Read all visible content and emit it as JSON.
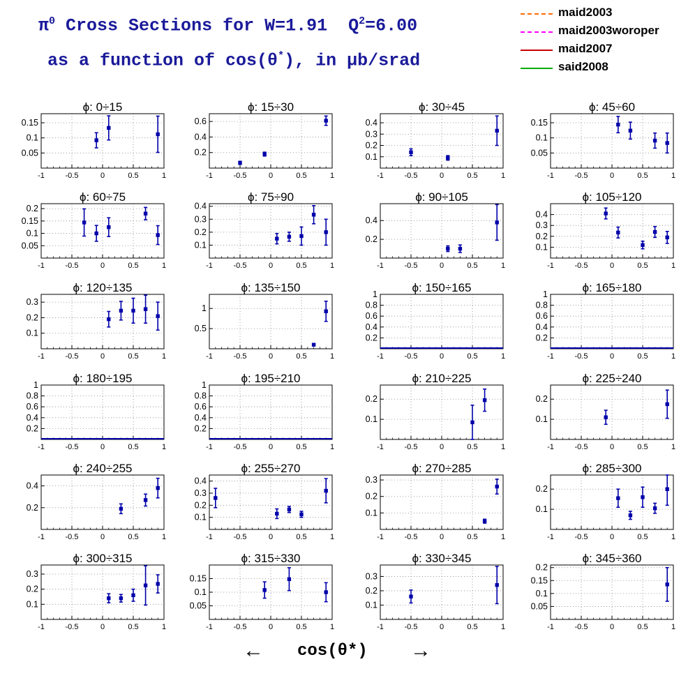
{
  "title": {
    "line1_prefix": "π",
    "line1_sup": "0",
    "line1_mid": " Cross Sections for W=1.91  Q",
    "line1_sup2": "2",
    "line1_end": "=6.00",
    "line2_prefix": "as a function of cos(θ",
    "line2_sup": "*",
    "line2_end": "), in μb/srad"
  },
  "legend": [
    {
      "label": "maid2003",
      "color": "#ff6a00",
      "style": "dashdot"
    },
    {
      "label": "maid2003woroper",
      "color": "#ff00ff",
      "style": "dashed"
    },
    {
      "label": "maid2007",
      "color": "#cc0000",
      "style": "solid"
    },
    {
      "label": "said2008",
      "color": "#00aa00",
      "style": "solid"
    }
  ],
  "axis_caption": {
    "left_arrow": "←",
    "label": "cos(θ*)",
    "right_arrow": "→"
  },
  "colors": {
    "points": "#0000aa",
    "grid": "#888888"
  },
  "chart_data": {
    "type": "scatter",
    "x_label": "cos(θ*)",
    "xlim": [
      -1,
      1
    ],
    "x_ticks": [
      "-1",
      "-0.5",
      "0",
      "0.5",
      "1"
    ],
    "grid": true,
    "panels": [
      {
        "label": "ϕ:  0÷15",
        "ylim": [
          0,
          0.18
        ],
        "yticks": [
          "0.05",
          "0.1",
          "0.15"
        ],
        "points": [
          {
            "x": -0.1,
            "y": 0.092,
            "err": 0.025
          },
          {
            "x": 0.1,
            "y": 0.133,
            "err": 0.04
          },
          {
            "x": 0.9,
            "y": 0.112,
            "err": 0.06
          }
        ]
      },
      {
        "label": "ϕ:  15÷30",
        "ylim": [
          0,
          0.7
        ],
        "yticks": [
          "0.2",
          "0.4",
          "0.6"
        ],
        "points": [
          {
            "x": -0.5,
            "y": 0.068,
            "err": 0.02
          },
          {
            "x": -0.1,
            "y": 0.18,
            "err": 0.025
          },
          {
            "x": 0.9,
            "y": 0.61,
            "err": 0.06
          }
        ]
      },
      {
        "label": "ϕ:  30÷45",
        "ylim": [
          0,
          0.48
        ],
        "yticks": [
          "0.1",
          "0.2",
          "0.3",
          "0.4"
        ],
        "points": [
          {
            "x": -0.5,
            "y": 0.14,
            "err": 0.03
          },
          {
            "x": 0.1,
            "y": 0.09,
            "err": 0.02
          },
          {
            "x": 0.9,
            "y": 0.33,
            "err": 0.13
          }
        ]
      },
      {
        "label": "ϕ:  45÷60",
        "ylim": [
          0,
          0.18
        ],
        "yticks": [
          "0.05",
          "0.1",
          "0.15"
        ],
        "points": [
          {
            "x": 0.1,
            "y": 0.144,
            "err": 0.027
          },
          {
            "x": 0.3,
            "y": 0.124,
            "err": 0.028
          },
          {
            "x": 0.7,
            "y": 0.091,
            "err": 0.025
          },
          {
            "x": 0.9,
            "y": 0.083,
            "err": 0.033
          }
        ]
      },
      {
        "label": "ϕ:  60÷75",
        "ylim": [
          0,
          0.22
        ],
        "yticks": [
          "0.05",
          "0.1",
          "0.15",
          "0.2"
        ],
        "points": [
          {
            "x": -0.3,
            "y": 0.144,
            "err": 0.055
          },
          {
            "x": -0.1,
            "y": 0.1,
            "err": 0.032
          },
          {
            "x": 0.1,
            "y": 0.125,
            "err": 0.038
          },
          {
            "x": 0.7,
            "y": 0.18,
            "err": 0.025
          },
          {
            "x": 0.9,
            "y": 0.093,
            "err": 0.038
          }
        ]
      },
      {
        "label": "ϕ:  75÷90",
        "ylim": [
          0,
          0.42
        ],
        "yticks": [
          "0.1",
          "0.2",
          "0.3",
          "0.4"
        ],
        "points": [
          {
            "x": 0.1,
            "y": 0.15,
            "err": 0.04
          },
          {
            "x": 0.3,
            "y": 0.165,
            "err": 0.035
          },
          {
            "x": 0.5,
            "y": 0.17,
            "err": 0.07
          },
          {
            "x": 0.7,
            "y": 0.335,
            "err": 0.07
          },
          {
            "x": 0.9,
            "y": 0.2,
            "err": 0.1
          }
        ]
      },
      {
        "label": "ϕ:  90÷105",
        "ylim": [
          0,
          0.58
        ],
        "yticks": [
          "0.2",
          "0.4"
        ],
        "points": [
          {
            "x": 0.1,
            "y": 0.1,
            "err": 0.03
          },
          {
            "x": 0.3,
            "y": 0.1,
            "err": 0.04
          },
          {
            "x": 0.9,
            "y": 0.38,
            "err": 0.19
          }
        ]
      },
      {
        "label": "ϕ:  105÷120",
        "ylim": [
          0,
          0.5
        ],
        "yticks": [
          "0.1",
          "0.2",
          "0.3",
          "0.4"
        ],
        "points": [
          {
            "x": -0.1,
            "y": 0.41,
            "err": 0.05
          },
          {
            "x": 0.1,
            "y": 0.235,
            "err": 0.05
          },
          {
            "x": 0.5,
            "y": 0.12,
            "err": 0.035
          },
          {
            "x": 0.7,
            "y": 0.24,
            "err": 0.05
          },
          {
            "x": 0.9,
            "y": 0.19,
            "err": 0.055
          }
        ]
      },
      {
        "label": "ϕ:  120÷135",
        "ylim": [
          0,
          0.35
        ],
        "yticks": [
          "0.1",
          "0.2",
          "0.3"
        ],
        "points": [
          {
            "x": 0.1,
            "y": 0.19,
            "err": 0.05
          },
          {
            "x": 0.3,
            "y": 0.245,
            "err": 0.06
          },
          {
            "x": 0.5,
            "y": 0.245,
            "err": 0.08
          },
          {
            "x": 0.7,
            "y": 0.255,
            "err": 0.09
          },
          {
            "x": 0.9,
            "y": 0.21,
            "err": 0.09
          }
        ]
      },
      {
        "label": "ϕ:  135÷150",
        "ylim": [
          0,
          1.35
        ],
        "yticks": [
          "0.5",
          "1"
        ],
        "points": [
          {
            "x": 0.7,
            "y": 0.1,
            "err": 0.03
          },
          {
            "x": 0.9,
            "y": 0.93,
            "err": 0.25
          }
        ]
      },
      {
        "label": "ϕ:  150÷165",
        "ylim": [
          0,
          1
        ],
        "yticks": [
          "0.2",
          "0.4",
          "0.6",
          "0.8",
          "1"
        ],
        "points": []
      },
      {
        "label": "ϕ:  165÷180",
        "ylim": [
          0,
          1
        ],
        "yticks": [
          "0.2",
          "0.4",
          "0.6",
          "0.8",
          "1"
        ],
        "points": []
      },
      {
        "label": "ϕ:  180÷195",
        "ylim": [
          0,
          1
        ],
        "yticks": [
          "0.2",
          "0.4",
          "0.6",
          "0.8",
          "1"
        ],
        "points": []
      },
      {
        "label": "ϕ:  195÷210",
        "ylim": [
          0,
          1
        ],
        "yticks": [
          "0.2",
          "0.4",
          "0.6",
          "0.8",
          "1"
        ],
        "points": []
      },
      {
        "label": "ϕ:  210÷225",
        "ylim": [
          0,
          0.27
        ],
        "yticks": [
          "0.1",
          "0.2"
        ],
        "points": [
          {
            "x": 0.5,
            "y": 0.085,
            "err": 0.085
          },
          {
            "x": 0.7,
            "y": 0.195,
            "err": 0.055
          }
        ]
      },
      {
        "label": "ϕ:  225÷240",
        "ylim": [
          0,
          0.27
        ],
        "yticks": [
          "0.1",
          "0.2"
        ],
        "points": [
          {
            "x": -0.1,
            "y": 0.11,
            "err": 0.035
          },
          {
            "x": 0.9,
            "y": 0.175,
            "err": 0.07
          }
        ]
      },
      {
        "label": "ϕ:  240÷255",
        "ylim": [
          0,
          0.5
        ],
        "yticks": [
          "0.2",
          "0.4"
        ],
        "points": [
          {
            "x": 0.3,
            "y": 0.19,
            "err": 0.045
          },
          {
            "x": 0.7,
            "y": 0.27,
            "err": 0.055
          },
          {
            "x": 0.9,
            "y": 0.38,
            "err": 0.09
          }
        ]
      },
      {
        "label": "ϕ:  255÷270",
        "ylim": [
          0,
          0.45
        ],
        "yticks": [
          "0.1",
          "0.2",
          "0.3",
          "0.4"
        ],
        "points": [
          {
            "x": -0.9,
            "y": 0.26,
            "err": 0.08
          },
          {
            "x": 0.1,
            "y": 0.13,
            "err": 0.04
          },
          {
            "x": 0.3,
            "y": 0.165,
            "err": 0.025
          },
          {
            "x": 0.5,
            "y": 0.125,
            "err": 0.025
          },
          {
            "x": 0.9,
            "y": 0.32,
            "err": 0.1
          }
        ]
      },
      {
        "label": "ϕ:  270÷285",
        "ylim": [
          0,
          0.33
        ],
        "yticks": [
          "0.1",
          "0.2",
          "0.3"
        ],
        "points": [
          {
            "x": 0.7,
            "y": 0.05,
            "err": 0.012
          },
          {
            "x": 0.9,
            "y": 0.26,
            "err": 0.045
          }
        ]
      },
      {
        "label": "ϕ:  285÷300",
        "ylim": [
          0,
          0.27
        ],
        "yticks": [
          "0.1",
          "0.2"
        ],
        "points": [
          {
            "x": 0.1,
            "y": 0.155,
            "err": 0.045
          },
          {
            "x": 0.3,
            "y": 0.07,
            "err": 0.02
          },
          {
            "x": 0.5,
            "y": 0.16,
            "err": 0.05
          },
          {
            "x": 0.7,
            "y": 0.105,
            "err": 0.025
          },
          {
            "x": 0.9,
            "y": 0.2,
            "err": 0.08
          }
        ]
      },
      {
        "label": "ϕ:  300÷315",
        "ylim": [
          0,
          0.36
        ],
        "yticks": [
          "0.1",
          "0.2",
          "0.3"
        ],
        "points": [
          {
            "x": 0.1,
            "y": 0.14,
            "err": 0.03
          },
          {
            "x": 0.3,
            "y": 0.14,
            "err": 0.025
          },
          {
            "x": 0.5,
            "y": 0.16,
            "err": 0.04
          },
          {
            "x": 0.7,
            "y": 0.225,
            "err": 0.13
          },
          {
            "x": 0.9,
            "y": 0.235,
            "err": 0.06
          }
        ]
      },
      {
        "label": "ϕ:  315÷330",
        "ylim": [
          0,
          0.2
        ],
        "yticks": [
          "0.05",
          "0.1",
          "0.15"
        ],
        "points": [
          {
            "x": -0.1,
            "y": 0.108,
            "err": 0.03
          },
          {
            "x": 0.3,
            "y": 0.148,
            "err": 0.042
          },
          {
            "x": 0.9,
            "y": 0.1,
            "err": 0.035
          }
        ]
      },
      {
        "label": "ϕ:  330÷345",
        "ylim": [
          0,
          0.38
        ],
        "yticks": [
          "0.1",
          "0.2",
          "0.3"
        ],
        "points": [
          {
            "x": -0.5,
            "y": 0.16,
            "err": 0.045
          },
          {
            "x": 0.9,
            "y": 0.24,
            "err": 0.13
          }
        ]
      },
      {
        "label": "ϕ:  345÷360",
        "ylim": [
          0,
          0.21
        ],
        "yticks": [
          "0.05",
          "0.1",
          "0.15",
          "0.2"
        ],
        "points": [
          {
            "x": 0.9,
            "y": 0.135,
            "err": 0.065
          }
        ]
      }
    ]
  }
}
